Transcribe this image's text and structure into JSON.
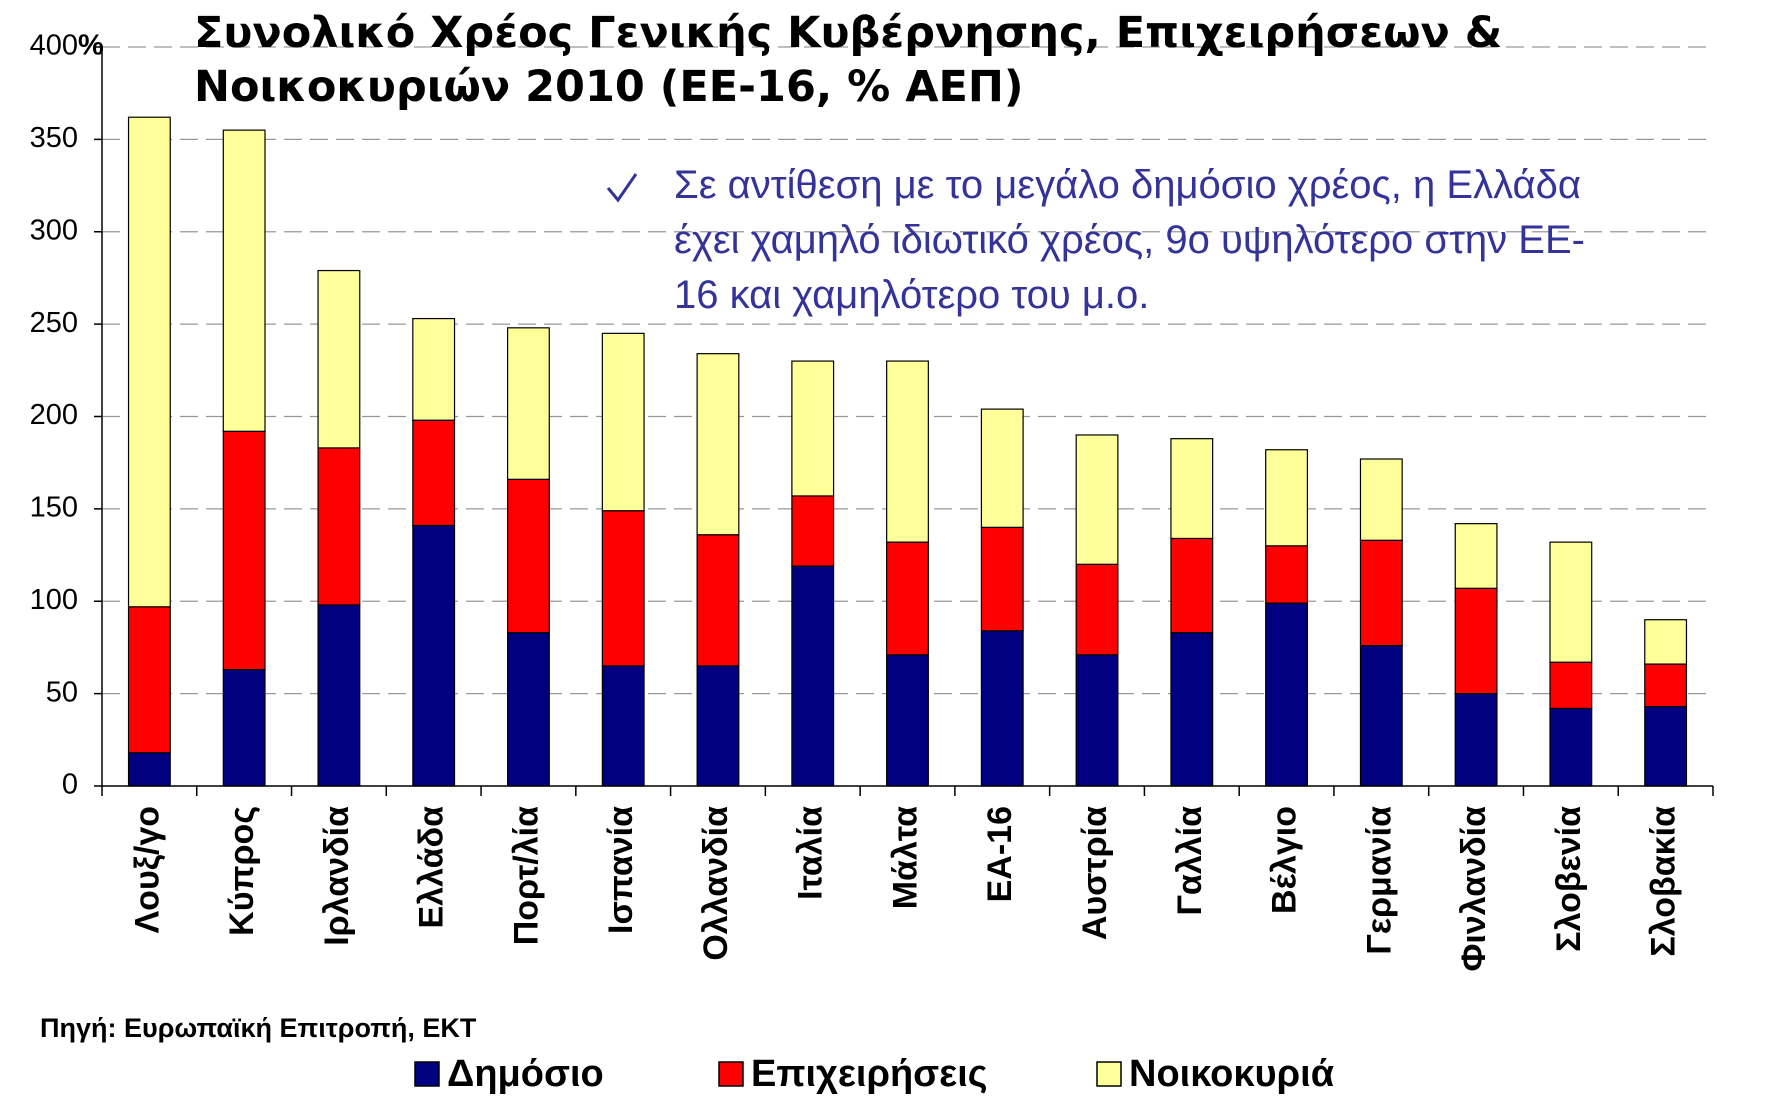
{
  "chart_data": {
    "type": "stacked_bar",
    "title": "Συνολικό Χρέος Γενικής Κυβέρνησης, Επιχειρήσεων &\nΝοικοκυριών 2010 (ΕΕ-16, % ΑΕΠ)",
    "annotation": "Σε αντίθεση με το μεγάλο δημόσιο χρέος, η Ελλάδα\nέχει χαμηλό ιδιωτικό χρέος, 9ο υψηλότερο στην ΕΕ-\n16 και χαμηλότερο του μ.ο.",
    "source": "Πηγή: Ευρωπαϊκή Επιτροπή, ΕΚΤ",
    "y_unit": "%",
    "categories": [
      "Λουξ/γο",
      "Κύπρος",
      "Ιρλανδία",
      "Ελλάδα",
      "Πορτ/λία",
      "Ισπανία",
      "Ολλανδία",
      "Ιταλία",
      "Μάλτα",
      "ΕΑ-16",
      "Αυστρία",
      "Γαλλία",
      "Βέλγιο",
      "Γερμανία",
      "Φινλανδία",
      "Σλοβενία",
      "Σλοβακία"
    ],
    "series": [
      {
        "name": "Δημόσιο",
        "color": "#000080",
        "values": [
          18,
          63,
          98,
          141,
          83,
          65,
          65,
          119,
          71,
          84,
          71,
          83,
          99,
          76,
          50,
          42,
          43
        ]
      },
      {
        "name": "Επιχειρήσεις",
        "color": "#ff0000",
        "values": [
          79,
          129,
          85,
          57,
          83,
          84,
          71,
          38,
          61,
          56,
          49,
          51,
          31,
          57,
          57,
          25,
          23
        ]
      },
      {
        "name": "Νοικοκυριά",
        "color": "#ffff99",
        "values": [
          265,
          163,
          96,
          55,
          82,
          96,
          98,
          73,
          98,
          64,
          70,
          54,
          52,
          44,
          35,
          65,
          24
        ]
      }
    ],
    "ylim": [
      0,
      400
    ],
    "yticks": [
      0,
      50,
      100,
      150,
      200,
      250,
      300,
      350,
      400
    ],
    "grid": true,
    "legend": "bottom"
  }
}
